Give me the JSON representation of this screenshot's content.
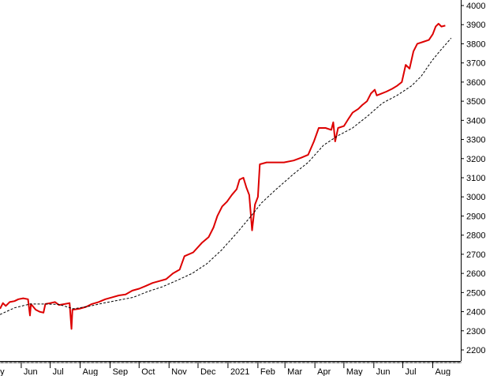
{
  "chart_data": {
    "type": "line",
    "title": "",
    "xlabel": "",
    "ylabel": "",
    "ylim": [
      2150,
      4050
    ],
    "x_range": [
      "2020-05-10",
      "2021-08-30"
    ],
    "y_ticks": [
      2200,
      2300,
      2400,
      2500,
      2600,
      2700,
      2800,
      2900,
      3000,
      3100,
      3200,
      3300,
      3400,
      3500,
      3600,
      3700,
      3800,
      3900,
      4000
    ],
    "x_ticks": [
      {
        "label": "ay",
        "date": "2020-05-10"
      },
      {
        "label": "Jun",
        "date": "2020-06-01"
      },
      {
        "label": "Jul",
        "date": "2020-07-01"
      },
      {
        "label": "Aug",
        "date": "2020-08-01"
      },
      {
        "label": "Sep",
        "date": "2020-09-01"
      },
      {
        "label": "Oct",
        "date": "2020-10-01"
      },
      {
        "label": "Nov",
        "date": "2020-11-01"
      },
      {
        "label": "Dec",
        "date": "2020-12-01"
      },
      {
        "label": "2021",
        "date": "2021-01-01"
      },
      {
        "label": "Feb",
        "date": "2021-02-01"
      },
      {
        "label": "Mar",
        "date": "2021-03-01"
      },
      {
        "label": "Apr",
        "date": "2021-04-01"
      },
      {
        "label": "May",
        "date": "2021-05-01"
      },
      {
        "label": "Jun",
        "date": "2021-06-01"
      },
      {
        "label": "Jul",
        "date": "2021-07-01"
      },
      {
        "label": "Aug",
        "date": "2021-08-01"
      }
    ],
    "grid": false,
    "y_axis_position": "right",
    "series": [
      {
        "color": "#dd0000",
        "style": "solid",
        "points": [
          [
            "2020-05-10",
            2415
          ],
          [
            "2020-05-13",
            2445
          ],
          [
            "2020-05-16",
            2430
          ],
          [
            "2020-05-20",
            2450
          ],
          [
            "2020-05-25",
            2455
          ],
          [
            "2020-05-29",
            2465
          ],
          [
            "2020-06-03",
            2470
          ],
          [
            "2020-06-08",
            2465
          ],
          [
            "2020-06-10",
            2380
          ],
          [
            "2020-06-11",
            2440
          ],
          [
            "2020-06-16",
            2410
          ],
          [
            "2020-06-20",
            2400
          ],
          [
            "2020-06-24",
            2395
          ],
          [
            "2020-06-26",
            2440
          ],
          [
            "2020-07-01",
            2445
          ],
          [
            "2020-07-06",
            2450
          ],
          [
            "2020-07-10",
            2435
          ],
          [
            "2020-07-16",
            2440
          ],
          [
            "2020-07-21",
            2445
          ],
          [
            "2020-07-23",
            2310
          ],
          [
            "2020-07-24",
            2410
          ],
          [
            "2020-07-31",
            2415
          ],
          [
            "2020-08-07",
            2425
          ],
          [
            "2020-08-13",
            2440
          ],
          [
            "2020-08-20",
            2450
          ],
          [
            "2020-08-27",
            2465
          ],
          [
            "2020-09-03",
            2475
          ],
          [
            "2020-09-10",
            2485
          ],
          [
            "2020-09-17",
            2490
          ],
          [
            "2020-09-24",
            2510
          ],
          [
            "2020-10-01",
            2520
          ],
          [
            "2020-10-08",
            2535
          ],
          [
            "2020-10-15",
            2550
          ],
          [
            "2020-10-22",
            2560
          ],
          [
            "2020-10-29",
            2570
          ],
          [
            "2020-11-05",
            2600
          ],
          [
            "2020-11-12",
            2620
          ],
          [
            "2020-11-17",
            2690
          ],
          [
            "2020-11-26",
            2710
          ],
          [
            "2020-12-05",
            2760
          ],
          [
            "2020-12-12",
            2790
          ],
          [
            "2020-12-17",
            2840
          ],
          [
            "2020-12-21",
            2900
          ],
          [
            "2020-12-26",
            2950
          ],
          [
            "2020-12-31",
            2975
          ],
          [
            "2021-01-05",
            3010
          ],
          [
            "2021-01-10",
            3040
          ],
          [
            "2021-01-13",
            3090
          ],
          [
            "2021-01-17",
            3100
          ],
          [
            "2021-01-20",
            3050
          ],
          [
            "2021-01-23",
            3010
          ],
          [
            "2021-01-26",
            2825
          ],
          [
            "2021-01-29",
            2960
          ],
          [
            "2021-02-01",
            3000
          ],
          [
            "2021-02-03",
            3170
          ],
          [
            "2021-02-10",
            3180
          ],
          [
            "2021-02-20",
            3180
          ],
          [
            "2021-02-28",
            3180
          ],
          [
            "2021-03-10",
            3190
          ],
          [
            "2021-03-18",
            3205
          ],
          [
            "2021-03-25",
            3220
          ],
          [
            "2021-03-31",
            3290
          ],
          [
            "2021-04-05",
            3360
          ],
          [
            "2021-04-12",
            3360
          ],
          [
            "2021-04-18",
            3350
          ],
          [
            "2021-04-20",
            3390
          ],
          [
            "2021-04-22",
            3290
          ],
          [
            "2021-04-25",
            3360
          ],
          [
            "2021-05-01",
            3370
          ],
          [
            "2021-05-06",
            3410
          ],
          [
            "2021-05-10",
            3440
          ],
          [
            "2021-05-16",
            3460
          ],
          [
            "2021-05-20",
            3480
          ],
          [
            "2021-05-25",
            3500
          ],
          [
            "2021-05-29",
            3540
          ],
          [
            "2021-06-02",
            3560
          ],
          [
            "2021-06-04",
            3530
          ],
          [
            "2021-06-09",
            3540
          ],
          [
            "2021-06-14",
            3550
          ],
          [
            "2021-06-20",
            3565
          ],
          [
            "2021-06-25",
            3580
          ],
          [
            "2021-06-30",
            3600
          ],
          [
            "2021-07-04",
            3690
          ],
          [
            "2021-07-08",
            3670
          ],
          [
            "2021-07-12",
            3760
          ],
          [
            "2021-07-16",
            3800
          ],
          [
            "2021-07-22",
            3810
          ],
          [
            "2021-07-28",
            3820
          ],
          [
            "2021-08-01",
            3850
          ],
          [
            "2021-08-04",
            3890
          ],
          [
            "2021-08-07",
            3905
          ],
          [
            "2021-08-10",
            3890
          ],
          [
            "2021-08-14",
            3895
          ]
        ]
      },
      {
        "color": "#000000",
        "style": "dashed",
        "points": [
          [
            "2020-05-10",
            2385
          ],
          [
            "2020-05-25",
            2420
          ],
          [
            "2020-06-10",
            2440
          ],
          [
            "2020-06-25",
            2440
          ],
          [
            "2020-07-10",
            2438
          ],
          [
            "2020-07-25",
            2415
          ],
          [
            "2020-08-10",
            2428
          ],
          [
            "2020-08-25",
            2445
          ],
          [
            "2020-09-10",
            2460
          ],
          [
            "2020-09-25",
            2475
          ],
          [
            "2020-10-10",
            2505
          ],
          [
            "2020-10-25",
            2530
          ],
          [
            "2020-11-10",
            2565
          ],
          [
            "2020-11-25",
            2600
          ],
          [
            "2020-12-10",
            2650
          ],
          [
            "2020-12-25",
            2720
          ],
          [
            "2021-01-10",
            2810
          ],
          [
            "2021-01-25",
            2900
          ],
          [
            "2021-02-05",
            2970
          ],
          [
            "2021-02-20",
            3040
          ],
          [
            "2021-03-10",
            3120
          ],
          [
            "2021-03-25",
            3180
          ],
          [
            "2021-04-10",
            3270
          ],
          [
            "2021-04-25",
            3320
          ],
          [
            "2021-05-10",
            3360
          ],
          [
            "2021-05-25",
            3420
          ],
          [
            "2021-06-10",
            3490
          ],
          [
            "2021-06-25",
            3530
          ],
          [
            "2021-07-10",
            3580
          ],
          [
            "2021-07-20",
            3630
          ],
          [
            "2021-07-31",
            3710
          ],
          [
            "2021-08-08",
            3760
          ],
          [
            "2021-08-15",
            3800
          ],
          [
            "2021-08-20",
            3830
          ]
        ]
      }
    ]
  }
}
